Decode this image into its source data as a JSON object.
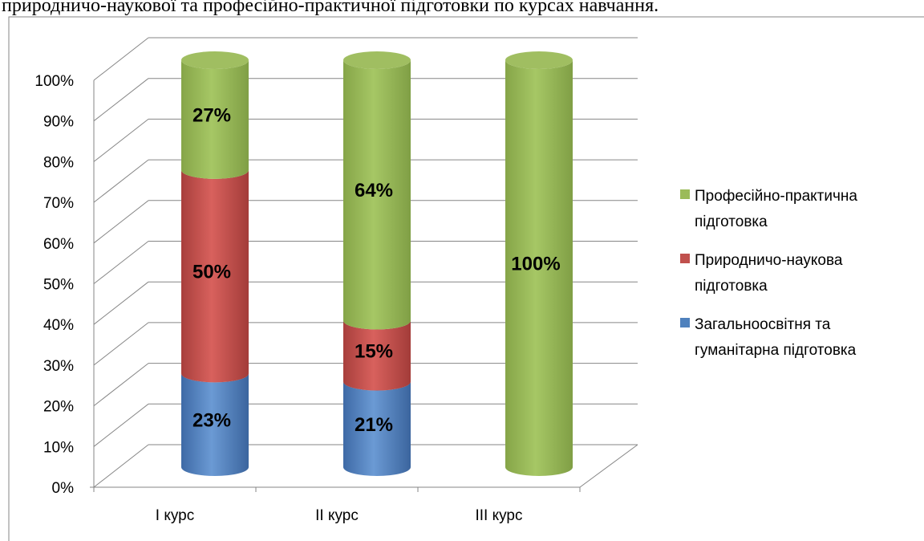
{
  "caption": "природничо-наукової та професійно-практичної підготовки по курсах навчання.",
  "chart_data": {
    "type": "bar",
    "stacked": true,
    "percent": true,
    "three_d": "cylinder",
    "categories": [
      "І курс",
      "ІІ курс",
      "ІІІ курс"
    ],
    "series": [
      {
        "name": "Загальноосвітня та гуманітарна підготовка",
        "legend_lines": [
          "Загальноосвітня та",
          "гуманітарна підготовка"
        ],
        "values": [
          23,
          21,
          0
        ],
        "labels": [
          "23%",
          "21%",
          ""
        ],
        "color": "#4F81BD"
      },
      {
        "name": "Природничо-наукова підготовка",
        "legend_lines": [
          "Природничо-наукова",
          "підготовка"
        ],
        "values": [
          50,
          15,
          0
        ],
        "labels": [
          "50%",
          "15%",
          ""
        ],
        "color": "#C0504D"
      },
      {
        "name": "Професійно-практична підготовка",
        "legend_lines": [
          "Професійно-практична",
          "підготовка"
        ],
        "values": [
          27,
          64,
          100
        ],
        "labels": [
          "27%",
          "64%",
          "100%"
        ],
        "color": "#9BBB59"
      }
    ],
    "y_ticks": [
      "0%",
      "10%",
      "20%",
      "30%",
      "40%",
      "50%",
      "60%",
      "70%",
      "80%",
      "90%",
      "100%"
    ],
    "ylim": [
      0,
      100
    ],
    "grid": true,
    "legend": "right",
    "title": "",
    "xlabel": "",
    "ylabel": ""
  }
}
